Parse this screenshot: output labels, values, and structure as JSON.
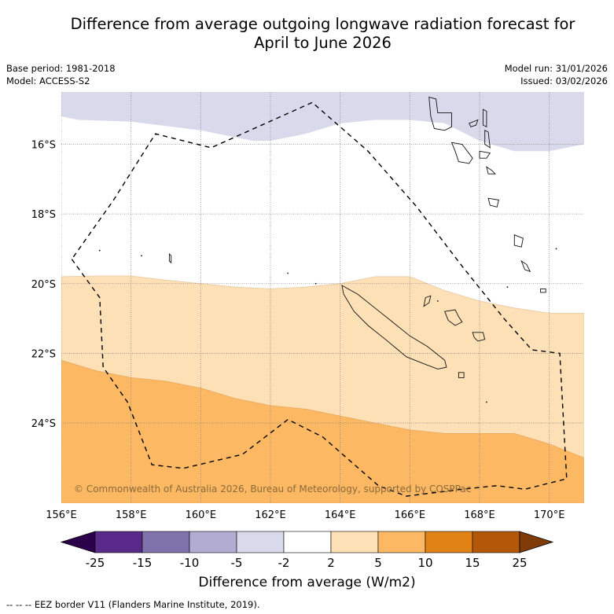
{
  "title_line1": "Difference from average outgoing longwave radiation forecast for",
  "title_line2": "April to June 2026",
  "meta_left": {
    "base_period": "Base period: 1981-2018",
    "model": "Model: ACCESS-S2"
  },
  "meta_right": {
    "model_run": "Model run: 31/01/2026",
    "issued": "Issued: 03/02/2026"
  },
  "copyright": "© Commonwealth of Australia 2026, Bureau of Meteorology, supported by COSPPac",
  "colorbar": {
    "title": "Difference from average (W/m2)",
    "ticks": [
      "-25",
      "-15",
      "-10",
      "-5",
      "-2",
      "2",
      "5",
      "10",
      "15",
      "25"
    ],
    "colors": [
      "#5a2a8a",
      "#8073ac",
      "#b2abd2",
      "#d8daeb",
      "#ffffff",
      "#fee0b6",
      "#fdb863",
      "#e08214",
      "#b35806"
    ],
    "extend_low_color": "#2d004b",
    "extend_high_color": "#7f3b08"
  },
  "footer": "--  --  -- EEZ border V11 (Flanders Marine Institute, 2019).",
  "chart_data": {
    "type": "heatmap",
    "title": "Difference from average outgoing longwave radiation forecast for April to June 2026",
    "units": "W/m2",
    "lon_range": [
      156,
      171
    ],
    "lat_range": [
      -26.3,
      -14.5
    ],
    "x_ticks": [
      "156°E",
      "158°E",
      "160°E",
      "162°E",
      "164°E",
      "166°E",
      "168°E",
      "170°E"
    ],
    "y_ticks": [
      "16°S",
      "18°S",
      "20°S",
      "22°S",
      "24°S"
    ],
    "grid": true,
    "categories": [
      {
        "range": "-5 to -2",
        "color": "#d8daeb",
        "region": "north, above ~15.5°S west and ~16.2°S east"
      },
      {
        "range": "-2 to 2",
        "color": "#ffffff",
        "region": "~16°S to ~20°S"
      },
      {
        "range": "2 to 5",
        "color": "#fee0b6",
        "region": "~20°S to ~23-24.5°S"
      },
      {
        "range": "5 to 10",
        "color": "#fdb863",
        "region": "south of ~22.2°S (west) / ~24.8°S (east)"
      }
    ],
    "boundaries": {
      "neg5_to_neg2_lower": [
        [
          156,
          -15.2
        ],
        [
          156.5,
          -15.3
        ],
        [
          158,
          -15.35
        ],
        [
          160,
          -15.6
        ],
        [
          161.5,
          -15.9
        ],
        [
          162,
          -15.9
        ],
        [
          163,
          -15.7
        ],
        [
          164,
          -15.4
        ],
        [
          165,
          -15.3
        ],
        [
          166,
          -15.3
        ],
        [
          167,
          -15.4
        ],
        [
          168,
          -15.9
        ],
        [
          169,
          -16.2
        ],
        [
          170,
          -16.2
        ],
        [
          171,
          -16.0
        ]
      ],
      "neg2_to_2_lower": [
        [
          156,
          -19.8
        ],
        [
          157,
          -19.78
        ],
        [
          158,
          -19.78
        ],
        [
          159,
          -19.9
        ],
        [
          160,
          -20.0
        ],
        [
          161,
          -20.1
        ],
        [
          162,
          -20.15
        ],
        [
          163,
          -20.1
        ],
        [
          164,
          -20.0
        ],
        [
          165,
          -19.8
        ],
        [
          166,
          -19.8
        ],
        [
          167,
          -20.2
        ],
        [
          168,
          -20.5
        ],
        [
          169,
          -20.7
        ],
        [
          170,
          -20.85
        ],
        [
          171,
          -20.85
        ]
      ],
      "2_to_5_lower": [
        [
          156,
          -22.2
        ],
        [
          157,
          -22.5
        ],
        [
          158,
          -22.7
        ],
        [
          159,
          -22.8
        ],
        [
          160,
          -23.0
        ],
        [
          161,
          -23.3
        ],
        [
          162,
          -23.5
        ],
        [
          163,
          -23.6
        ],
        [
          164,
          -23.8
        ],
        [
          165,
          -24.0
        ],
        [
          166,
          -24.2
        ],
        [
          167,
          -24.3
        ],
        [
          168,
          -24.3
        ],
        [
          169,
          -24.3
        ],
        [
          170,
          -24.6
        ],
        [
          171,
          -25.0
        ]
      ]
    },
    "eez_border": [
      [
        156.3,
        -19.3
      ],
      [
        157.1,
        -20.4
      ],
      [
        157.2,
        -22.4
      ],
      [
        157.9,
        -23.4
      ],
      [
        158.6,
        -25.2
      ],
      [
        159.5,
        -25.3
      ],
      [
        161.2,
        -24.9
      ],
      [
        162.5,
        -23.9
      ],
      [
        163.5,
        -24.4
      ],
      [
        165.1,
        -25.8
      ],
      [
        165.9,
        -26.1
      ],
      [
        167.5,
        -25.9
      ],
      [
        168.5,
        -25.8
      ],
      [
        169.3,
        -25.9
      ],
      [
        170.5,
        -25.6
      ],
      [
        170.3,
        -22.0
      ],
      [
        169.5,
        -21.9
      ],
      [
        168.7,
        -21.0
      ],
      [
        167.5,
        -19.5
      ],
      [
        166.2,
        -17.8
      ],
      [
        164.8,
        -16.2
      ],
      [
        163.2,
        -14.8
      ],
      [
        160.3,
        -16.1
      ],
      [
        158.7,
        -15.7
      ],
      [
        157.5,
        -17.6
      ],
      [
        156.3,
        -19.3
      ]
    ],
    "annotations": [
      "© Commonwealth of Australia 2026, Bureau of Meteorology, supported by COSPPac"
    ]
  }
}
